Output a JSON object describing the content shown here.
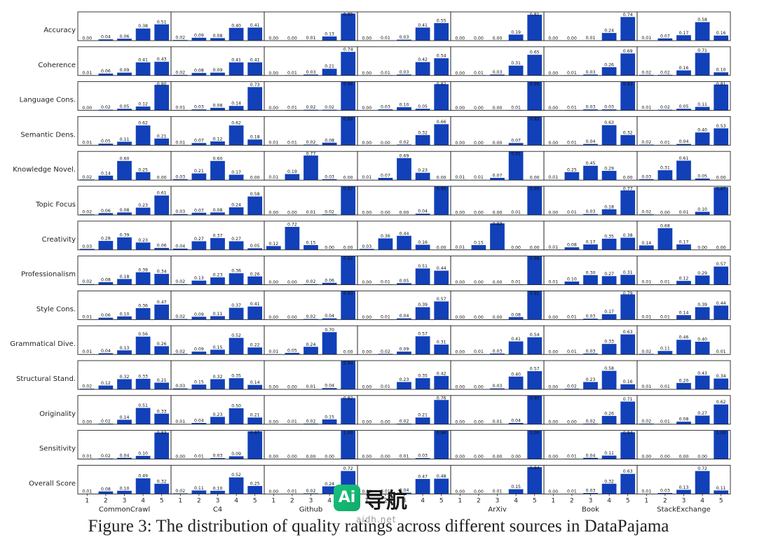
{
  "caption": "Figure 3: The distribution of quality ratings across different sources in DataPajama",
  "watermark": {
    "logo": "Ai",
    "name": "导航",
    "url": "aidh.net"
  },
  "chart_data": {
    "type": "bar",
    "layout": "grid of small multiples",
    "bar_color": "#1140b8",
    "ylim": [
      0,
      0.9
    ],
    "x_ticks": [
      "1",
      "2",
      "3",
      "4",
      "5"
    ],
    "sources": [
      "CommonCrawl",
      "C4",
      "Github",
      "",
      "ArXiv",
      "Book",
      "StackExchange"
    ],
    "metrics": [
      "Accuracy",
      "Coherence",
      "Language Cons.",
      "Semantic Dens.",
      "Knowledge Novel.",
      "Topic Focus",
      "Creativity",
      "Professionalism",
      "Style Cons.",
      "Grammatical Dive.",
      "Structural Stand.",
      "Originality",
      "Sensitivity",
      "Overall Score"
    ],
    "values": [
      [
        [
          0.0,
          0.04,
          0.06,
          0.38,
          0.51
        ],
        [
          0.02,
          0.09,
          0.08,
          0.4,
          0.41
        ],
        [
          0.0,
          0.0,
          0.01,
          0.13,
          0.85
        ],
        [
          0.0,
          0.01,
          0.03,
          0.41,
          0.55
        ],
        [
          0.0,
          0.0,
          0.0,
          0.19,
          0.81
        ],
        [
          0.0,
          0.0,
          0.01,
          0.24,
          0.74
        ],
        [
          0.01,
          0.07,
          0.17,
          0.58,
          0.16
        ]
      ],
      [
        [
          0.01,
          0.06,
          0.09,
          0.41,
          0.43
        ],
        [
          0.02,
          0.08,
          0.09,
          0.41,
          0.41
        ],
        [
          0.0,
          0.01,
          0.03,
          0.21,
          0.74
        ],
        [
          0.0,
          0.01,
          0.03,
          0.42,
          0.54
        ],
        [
          0.0,
          0.01,
          0.03,
          0.31,
          0.65
        ],
        [
          0.0,
          0.01,
          0.03,
          0.26,
          0.69
        ],
        [
          0.02,
          0.02,
          0.16,
          0.71,
          0.1
        ]
      ],
      [
        [
          0.0,
          0.02,
          0.05,
          0.12,
          0.8
        ],
        [
          0.01,
          0.03,
          0.08,
          0.14,
          0.73
        ],
        [
          0.0,
          0.01,
          0.02,
          0.02,
          0.96
        ],
        [
          0.0,
          0.03,
          0.1,
          0.05,
          0.82
        ],
        [
          0.0,
          0.0,
          0.0,
          0.01,
          0.99
        ],
        [
          0.0,
          0.01,
          0.03,
          0.03,
          0.93
        ],
        [
          0.01,
          0.02,
          0.05,
          0.11,
          0.81
        ]
      ],
      [
        [
          0.01,
          0.05,
          0.11,
          0.62,
          0.21
        ],
        [
          0.01,
          0.07,
          0.12,
          0.62,
          0.18
        ],
        [
          0.01,
          0.01,
          0.02,
          0.08,
          0.89
        ],
        [
          0.0,
          0.0,
          0.02,
          0.32,
          0.66
        ],
        [
          0.0,
          0.0,
          0.0,
          0.07,
          0.92
        ],
        [
          0.0,
          0.01,
          0.04,
          0.63,
          0.32
        ],
        [
          0.02,
          0.01,
          0.04,
          0.4,
          0.53
        ]
      ],
      [
        [
          0.02,
          0.14,
          0.6,
          0.25,
          0.0
        ],
        [
          0.03,
          0.21,
          0.6,
          0.17,
          0.0
        ],
        [
          0.01,
          0.19,
          0.77,
          0.03,
          0.0
        ],
        [
          0.01,
          0.07,
          0.69,
          0.23,
          0.0
        ],
        [
          0.01,
          0.01,
          0.07,
          0.91,
          0.0
        ],
        [
          0.01,
          0.25,
          0.45,
          0.29,
          0.0
        ],
        [
          0.03,
          0.31,
          0.61,
          0.05,
          0.0
        ]
      ],
      [
        [
          0.02,
          0.06,
          0.08,
          0.23,
          0.61
        ],
        [
          0.03,
          0.07,
          0.08,
          0.24,
          0.58
        ],
        [
          0.0,
          0.0,
          0.01,
          0.02,
          0.97
        ],
        [
          0.0,
          0.0,
          0.0,
          0.04,
          0.95
        ],
        [
          0.0,
          0.0,
          0.0,
          0.01,
          0.99
        ],
        [
          0.0,
          0.01,
          0.03,
          0.18,
          0.77
        ],
        [
          0.02,
          0.0,
          0.01,
          0.1,
          0.87
        ]
      ],
      [
        [
          0.03,
          0.28,
          0.39,
          0.23,
          0.06
        ],
        [
          0.04,
          0.27,
          0.37,
          0.27,
          0.05
        ],
        [
          0.12,
          0.72,
          0.15,
          0.0,
          0.0
        ],
        [
          0.03,
          0.36,
          0.44,
          0.16,
          0.0
        ],
        [
          0.01,
          0.15,
          0.83,
          0.0,
          0.0
        ],
        [
          0.01,
          0.08,
          0.17,
          0.35,
          0.38
        ],
        [
          0.14,
          0.68,
          0.17,
          0.0,
          0.0
        ]
      ],
      [
        [
          0.02,
          0.08,
          0.18,
          0.39,
          0.34
        ],
        [
          0.02,
          0.13,
          0.23,
          0.36,
          0.26
        ],
        [
          0.0,
          0.0,
          0.02,
          0.06,
          0.92
        ],
        [
          0.0,
          0.01,
          0.05,
          0.51,
          0.44
        ],
        [
          0.0,
          0.0,
          0.0,
          0.01,
          0.98
        ],
        [
          0.01,
          0.1,
          0.3,
          0.27,
          0.31
        ],
        [
          0.01,
          0.01,
          0.12,
          0.29,
          0.57
        ]
      ],
      [
        [
          0.01,
          0.06,
          0.1,
          0.36,
          0.47
        ],
        [
          0.02,
          0.09,
          0.11,
          0.37,
          0.41
        ],
        [
          0.0,
          0.0,
          0.02,
          0.04,
          0.93
        ],
        [
          0.0,
          0.01,
          0.04,
          0.39,
          0.57
        ],
        [
          0.0,
          0.0,
          0.0,
          0.08,
          0.91
        ],
        [
          0.0,
          0.01,
          0.03,
          0.17,
          0.79
        ],
        [
          0.01,
          0.01,
          0.14,
          0.39,
          0.44
        ]
      ],
      [
        [
          0.01,
          0.04,
          0.13,
          0.56,
          0.26
        ],
        [
          0.02,
          0.09,
          0.15,
          0.52,
          0.22
        ],
        [
          0.01,
          0.05,
          0.24,
          0.7,
          0.0
        ],
        [
          0.0,
          0.02,
          0.09,
          0.57,
          0.31
        ],
        [
          0.0,
          0.01,
          0.03,
          0.41,
          0.54
        ],
        [
          0.0,
          0.01,
          0.03,
          0.33,
          0.63
        ],
        [
          0.02,
          0.11,
          0.46,
          0.4,
          0.01
        ]
      ],
      [
        [
          0.02,
          0.12,
          0.32,
          0.33,
          0.21
        ],
        [
          0.03,
          0.15,
          0.32,
          0.35,
          0.14
        ],
        [
          0.0,
          0.0,
          0.01,
          0.04,
          0.94
        ],
        [
          0.0,
          0.01,
          0.23,
          0.35,
          0.42
        ],
        [
          0.0,
          0.0,
          0.03,
          0.4,
          0.57
        ],
        [
          0.0,
          0.02,
          0.23,
          0.58,
          0.16
        ],
        [
          0.01,
          0.01,
          0.2,
          0.43,
          0.34
        ]
      ],
      [
        [
          0.0,
          0.02,
          0.14,
          0.51,
          0.33
        ],
        [
          0.01,
          0.04,
          0.23,
          0.5,
          0.21
        ],
        [
          0.0,
          0.01,
          0.02,
          0.15,
          0.82
        ],
        [
          0.0,
          0.0,
          0.02,
          0.21,
          0.76
        ],
        [
          0.0,
          0.0,
          0.01,
          0.04,
          0.95
        ],
        [
          0.0,
          0.0,
          0.02,
          0.26,
          0.71
        ],
        [
          0.02,
          0.01,
          0.08,
          0.27,
          0.62
        ]
      ],
      [
        [
          0.01,
          0.02,
          0.04,
          0.1,
          0.83
        ],
        [
          0.0,
          0.01,
          0.03,
          0.09,
          0.87
        ],
        [
          0.0,
          0.0,
          0.0,
          0.0,
          1.0
        ],
        [
          0.0,
          0.0,
          0.01,
          0.03,
          0.96
        ],
        [
          0.0,
          0.0,
          0.0,
          0.0,
          1.0
        ],
        [
          0.0,
          0.01,
          0.04,
          0.11,
          0.84
        ],
        [
          0.0,
          0.0,
          0.0,
          0.0,
          1.0
        ]
      ],
      [
        [
          0.01,
          0.08,
          0.1,
          0.49,
          0.32
        ],
        [
          0.02,
          0.11,
          0.1,
          0.52,
          0.25
        ],
        [
          0.0,
          0.01,
          0.02,
          0.24,
          0.72
        ],
        [
          0.0,
          0.01,
          0.04,
          0.47,
          0.48
        ],
        [
          0.0,
          0.0,
          0.01,
          0.15,
          0.84
        ],
        [
          0.0,
          0.01,
          0.03,
          0.32,
          0.63
        ],
        [
          0.01,
          0.03,
          0.13,
          0.72,
          0.11
        ]
      ]
    ]
  }
}
